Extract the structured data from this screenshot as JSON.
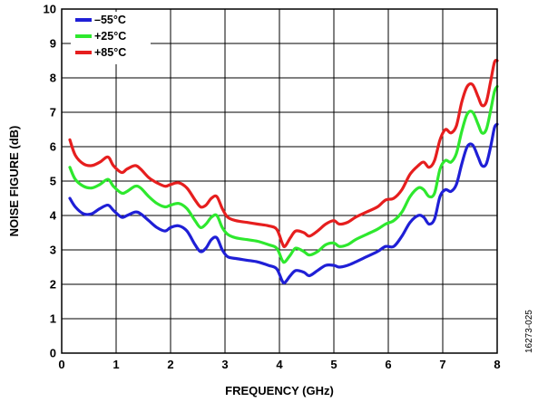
{
  "chart_data": {
    "type": "line",
    "xlabel": "FREQUENCY (GHz)",
    "ylabel": "NOISE FIGURE (dB)",
    "xlim": [
      0,
      8
    ],
    "ylim": [
      0,
      10
    ],
    "xticks": [
      "0",
      "1",
      "2",
      "3",
      "4",
      "5",
      "6",
      "7",
      "8"
    ],
    "yticks": [
      "0",
      "1",
      "2",
      "3",
      "4",
      "5",
      "6",
      "7",
      "8",
      "9",
      "10"
    ],
    "grid": true,
    "legend_position": "top-left",
    "figure_id": "16273-025",
    "series": [
      {
        "name": "–55°C",
        "color": "#1f1fd6",
        "x": [
          0.15,
          0.25,
          0.4,
          0.55,
          0.7,
          0.85,
          0.95,
          1.1,
          1.2,
          1.35,
          1.45,
          1.6,
          1.75,
          1.9,
          2.0,
          2.15,
          2.3,
          2.45,
          2.55,
          2.65,
          2.75,
          2.85,
          2.95,
          3.05,
          3.2,
          3.4,
          3.6,
          3.8,
          3.95,
          4.05,
          4.1,
          4.2,
          4.3,
          4.45,
          4.55,
          4.7,
          4.85,
          5.0,
          5.1,
          5.25,
          5.4,
          5.6,
          5.8,
          5.95,
          6.1,
          6.25,
          6.4,
          6.55,
          6.65,
          6.75,
          6.85,
          6.95,
          7.05,
          7.15,
          7.25,
          7.35,
          7.45,
          7.55,
          7.65,
          7.72,
          7.8,
          7.88,
          7.95,
          8.0
        ],
        "values": [
          4.5,
          4.25,
          4.05,
          4.05,
          4.2,
          4.3,
          4.15,
          3.95,
          4.0,
          4.1,
          4.05,
          3.85,
          3.65,
          3.55,
          3.65,
          3.7,
          3.55,
          3.15,
          2.95,
          3.05,
          3.3,
          3.35,
          3.0,
          2.8,
          2.75,
          2.7,
          2.65,
          2.55,
          2.45,
          2.1,
          2.05,
          2.25,
          2.4,
          2.35,
          2.25,
          2.4,
          2.55,
          2.55,
          2.5,
          2.55,
          2.65,
          2.8,
          2.95,
          3.1,
          3.1,
          3.4,
          3.8,
          4.0,
          3.95,
          3.75,
          3.9,
          4.55,
          4.75,
          4.7,
          4.9,
          5.5,
          6.0,
          6.05,
          5.7,
          5.45,
          5.5,
          6.0,
          6.55,
          6.65
        ]
      },
      {
        "name": "+25°C",
        "color": "#2ee82e",
        "x": [
          0.15,
          0.25,
          0.4,
          0.55,
          0.7,
          0.85,
          0.95,
          1.1,
          1.2,
          1.35,
          1.45,
          1.6,
          1.75,
          1.9,
          2.0,
          2.15,
          2.3,
          2.45,
          2.55,
          2.65,
          2.75,
          2.85,
          2.95,
          3.05,
          3.2,
          3.4,
          3.6,
          3.8,
          3.95,
          4.05,
          4.1,
          4.2,
          4.3,
          4.45,
          4.55,
          4.7,
          4.85,
          5.0,
          5.1,
          5.25,
          5.4,
          5.6,
          5.8,
          5.95,
          6.1,
          6.25,
          6.4,
          6.55,
          6.65,
          6.75,
          6.85,
          6.95,
          7.05,
          7.15,
          7.25,
          7.35,
          7.45,
          7.55,
          7.65,
          7.72,
          7.8,
          7.88,
          7.95,
          8.0
        ],
        "values": [
          5.4,
          5.05,
          4.85,
          4.8,
          4.9,
          5.05,
          4.85,
          4.65,
          4.7,
          4.85,
          4.8,
          4.55,
          4.35,
          4.25,
          4.3,
          4.35,
          4.2,
          3.85,
          3.65,
          3.75,
          3.95,
          4.0,
          3.65,
          3.45,
          3.35,
          3.3,
          3.25,
          3.15,
          3.05,
          2.7,
          2.65,
          2.85,
          3.05,
          2.95,
          2.85,
          2.95,
          3.15,
          3.2,
          3.1,
          3.15,
          3.3,
          3.45,
          3.6,
          3.75,
          3.85,
          4.1,
          4.55,
          4.8,
          4.75,
          4.55,
          4.65,
          5.35,
          5.6,
          5.55,
          5.8,
          6.45,
          6.95,
          7.0,
          6.65,
          6.4,
          6.5,
          7.05,
          7.6,
          7.75
        ]
      },
      {
        "name": "+85°C",
        "color": "#e61e1e",
        "x": [
          0.15,
          0.25,
          0.4,
          0.55,
          0.7,
          0.85,
          0.95,
          1.1,
          1.2,
          1.35,
          1.45,
          1.6,
          1.75,
          1.9,
          2.0,
          2.15,
          2.3,
          2.45,
          2.55,
          2.65,
          2.75,
          2.85,
          2.95,
          3.05,
          3.2,
          3.4,
          3.6,
          3.8,
          3.95,
          4.05,
          4.1,
          4.2,
          4.3,
          4.45,
          4.55,
          4.7,
          4.85,
          5.0,
          5.1,
          5.25,
          5.4,
          5.6,
          5.8,
          5.95,
          6.1,
          6.25,
          6.4,
          6.55,
          6.65,
          6.75,
          6.85,
          6.95,
          7.05,
          7.15,
          7.25,
          7.35,
          7.45,
          7.55,
          7.65,
          7.72,
          7.8,
          7.88,
          7.95,
          8.0
        ],
        "values": [
          6.2,
          5.75,
          5.5,
          5.45,
          5.55,
          5.7,
          5.45,
          5.25,
          5.35,
          5.45,
          5.35,
          5.1,
          4.95,
          4.85,
          4.9,
          4.95,
          4.8,
          4.45,
          4.25,
          4.3,
          4.5,
          4.55,
          4.2,
          3.95,
          3.85,
          3.8,
          3.75,
          3.7,
          3.6,
          3.2,
          3.1,
          3.35,
          3.55,
          3.5,
          3.4,
          3.55,
          3.75,
          3.85,
          3.75,
          3.8,
          3.95,
          4.1,
          4.25,
          4.45,
          4.5,
          4.75,
          5.2,
          5.45,
          5.55,
          5.4,
          5.6,
          6.2,
          6.5,
          6.4,
          6.6,
          7.3,
          7.75,
          7.8,
          7.45,
          7.2,
          7.3,
          7.9,
          8.45,
          8.5
        ]
      }
    ]
  }
}
